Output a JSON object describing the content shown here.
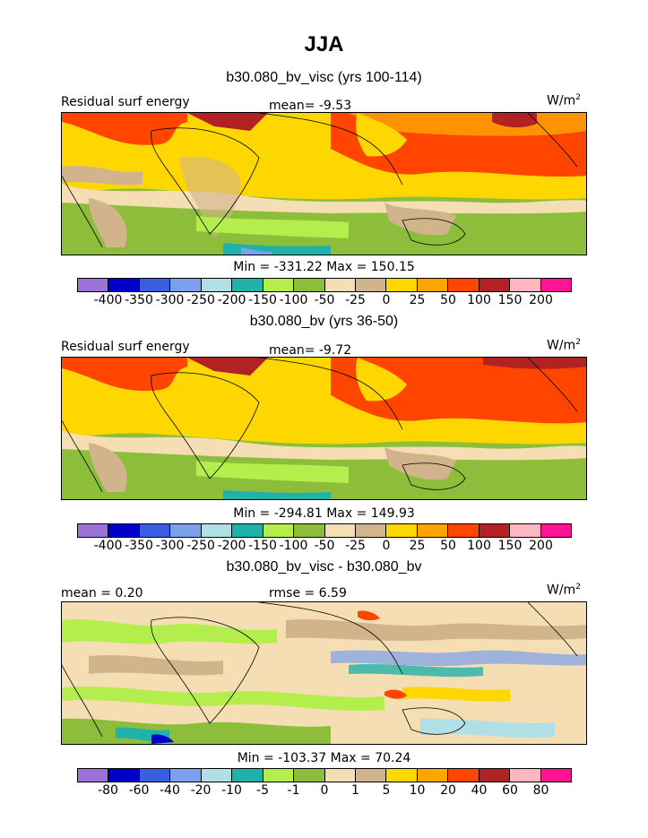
{
  "season": "JJA",
  "panels": [
    {
      "title": "b30.080_bv_visc (yrs 100-114)",
      "left_label": "Residual surf energy",
      "center_label": "mean=  -9.53",
      "units_base": "W/m",
      "units_exp": "2",
      "minmax": "Min = -331.22 Max = 150.15"
    },
    {
      "title": "b30.080_bv (yrs 36-50)",
      "left_label": "Residual surf energy",
      "center_label": "mean=  -9.72",
      "units_base": "W/m",
      "units_exp": "2",
      "minmax": "Min = -294.81 Max = 149.93"
    },
    {
      "title": "b30.080_bv_visc - b30.080_bv",
      "left_label": "mean =   0.20",
      "center_label": "rmse =   6.59",
      "units_base": "W/m",
      "units_exp": "2",
      "minmax": "Min = -103.37 Max =  70.24"
    }
  ],
  "chart_data": [
    {
      "type": "heatmap",
      "title": "b30.080_bv_visc (yrs 100-114)",
      "variable": "Residual surf energy",
      "units": "W/m2",
      "mean": -9.53,
      "min": -331.22,
      "max": 150.15,
      "colorbar_levels": [
        "-400",
        "-350",
        "-300",
        "-250",
        "-200",
        "-150",
        "-100",
        "-50",
        "-25",
        "0",
        "25",
        "50",
        "100",
        "150",
        "200"
      ],
      "colorbar_colors": [
        "#9a72d8",
        "#0000c8",
        "#3a5ee0",
        "#7aa0ee",
        "#b0e0e6",
        "#20b2aa",
        "#b4ee4c",
        "#8cbe3c",
        "#f5deb3",
        "#d2b48c",
        "#ffd700",
        "#ffa500",
        "#ff4500",
        "#b22222",
        "#ffb6c1",
        "#ff1493"
      ]
    },
    {
      "type": "heatmap",
      "title": "b30.080_bv (yrs 36-50)",
      "variable": "Residual surf energy",
      "units": "W/m2",
      "mean": -9.72,
      "min": -294.81,
      "max": 149.93,
      "colorbar_levels": [
        "-400",
        "-350",
        "-300",
        "-250",
        "-200",
        "-150",
        "-100",
        "-50",
        "-25",
        "0",
        "25",
        "50",
        "100",
        "150",
        "200"
      ],
      "colorbar_colors": [
        "#9a72d8",
        "#0000c8",
        "#3a5ee0",
        "#7aa0ee",
        "#b0e0e6",
        "#20b2aa",
        "#b4ee4c",
        "#8cbe3c",
        "#f5deb3",
        "#d2b48c",
        "#ffd700",
        "#ffa500",
        "#ff4500",
        "#b22222",
        "#ffb6c1",
        "#ff1493"
      ]
    },
    {
      "type": "heatmap",
      "title": "b30.080_bv_visc - b30.080_bv",
      "units": "W/m2",
      "mean": 0.2,
      "rmse": 6.59,
      "min": -103.37,
      "max": 70.24,
      "colorbar_levels": [
        "-80",
        "-60",
        "-40",
        "-20",
        "-10",
        "-5",
        "-1",
        "0",
        "1",
        "5",
        "10",
        "20",
        "40",
        "60",
        "80"
      ],
      "colorbar_colors": [
        "#9a72d8",
        "#0000c8",
        "#3a5ee0",
        "#7aa0ee",
        "#b0e0e6",
        "#20b2aa",
        "#b4ee4c",
        "#8cbe3c",
        "#f5deb3",
        "#d2b48c",
        "#ffd700",
        "#ffa500",
        "#ff4500",
        "#b22222",
        "#ffb6c1",
        "#ff1493"
      ]
    }
  ]
}
